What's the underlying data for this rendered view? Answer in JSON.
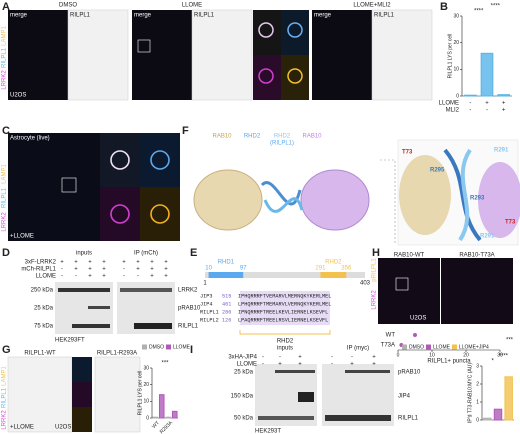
{
  "panel_letters": [
    "A",
    "B",
    "C",
    "D",
    "E",
    "F",
    "G",
    "H",
    "I"
  ],
  "a": {
    "conditions": [
      "DMSO",
      "LLOME",
      "LLOME+MLI2"
    ],
    "merge": "merge",
    "channel": "RILPL1",
    "cells": "U2OS",
    "stain": [
      "LRRK2",
      "RILPL1",
      "LAMP1"
    ]
  },
  "c": {
    "title": "Astrocyte (live)",
    "treatment": "+LLOME",
    "stain": [
      "LRRK2",
      "RILPL1",
      "LAMP1"
    ]
  },
  "d": {
    "groups": [
      "inputs",
      "IP (mCh)"
    ],
    "rows": [
      {
        "name": "3xF-LRRK2",
        "marks": [
          "+",
          "+",
          "+",
          "+",
          "+",
          "+",
          "+",
          "+"
        ]
      },
      {
        "name": "mCh-RILPL1",
        "marks": [
          "-",
          "+",
          "+",
          "+",
          "-",
          "+",
          "+",
          "+"
        ]
      },
      {
        "name": "LLOME",
        "marks": [
          "-",
          "-",
          "+",
          "+",
          "-",
          "-",
          "+",
          "+"
        ]
      }
    ],
    "bands": [
      {
        "size": "250 kDa",
        "name": "LRRK2"
      },
      {
        "size": "25 kDa",
        "name": "pRAB10"
      },
      {
        "size": "75 kDa",
        "name": "RILPL1"
      }
    ],
    "cells": "HEK293FT"
  },
  "e": {
    "domains": [
      {
        "name": "RHD1",
        "start": 10,
        "end": 97
      },
      {
        "name": "RHD2",
        "start": 291,
        "end": 356
      }
    ],
    "length_start": 1,
    "length_end": 403,
    "alignment": [
      {
        "protein": "JIP3",
        "start": 515,
        "sequence": "IPHQRRRFTVEMARVLMERNQKYKERLMEL"
      },
      {
        "protein": "JIP4",
        "start": 461,
        "sequence": "LPHQRRRFTMEMARVLVERNQKYKERLMEL"
      },
      {
        "protein": "RILPL1",
        "start": 286,
        "sequence": "IPNQRRRFTREELKEVLIERNELKSEVFL"
      },
      {
        "protein": "RILPL2",
        "start": 126,
        "sequence": "LPAQRRRFTREELRSVLIERNELKSEVFL"
      }
    ],
    "motif": "RHD2"
  },
  "f": {
    "labels": [
      "RAB10",
      "RHD2",
      "RHD2",
      "RAB10"
    ],
    "subtitle": "(RILPL1)",
    "residues": [
      "T73",
      "R291",
      "R295",
      "R293",
      "R291",
      "T73"
    ]
  },
  "g": {
    "conditions": [
      "RILPL1-WT",
      "RILPL1-R293A"
    ],
    "treatment": "+LLOME",
    "cells": "U2OS",
    "stain": [
      "LRRK2",
      "RILPL1",
      "LAMP1"
    ]
  },
  "h": {
    "conditions": [
      "RAB10-WT",
      "RAB10-T73A"
    ],
    "stain": [
      "LRRK2",
      "pRILPL1"
    ],
    "cells": "U2OS"
  },
  "i": {
    "groups": [
      "inputs",
      "IP (myc)"
    ],
    "rows": [
      {
        "name": "3xHA-JIP4",
        "marks": [
          "-",
          "-",
          "+",
          "-",
          "-",
          "+"
        ]
      },
      {
        "name": "LLOME",
        "marks": [
          "-",
          "+",
          "+",
          "-",
          "+",
          "+"
        ]
      }
    ],
    "bands": [
      {
        "size": "25 kDa",
        "name": "pRAB10"
      },
      {
        "size": "150 kDa",
        "name": "JIP4"
      },
      {
        "size": "50 kDa",
        "name": "RILPL1"
      }
    ],
    "cells": "HEK293T"
  },
  "chart_data": [
    {
      "type": "bar",
      "y_label": "RILPL1 LYS per cell",
      "categories": [
        null,
        null,
        null
      ],
      "values": [
        0.3,
        16,
        0.5
      ],
      "color": "#56b4e9",
      "ylim": [
        0,
        30
      ],
      "yticks": [
        0,
        10,
        20,
        30
      ],
      "significance": [
        "****",
        "****"
      ],
      "condition_rows": [
        {
          "name": "LLOME",
          "marks": [
            "-",
            "+",
            "+"
          ]
        },
        {
          "name": "MLI2",
          "marks": [
            "-",
            "-",
            "+"
          ]
        }
      ]
    },
    {
      "type": "bar",
      "y_label": "RILPL1 LYS per cell",
      "categories": [
        "WT",
        "R293A"
      ],
      "series": [
        {
          "name": "DMSO",
          "color": "#b0b0b0",
          "values": [
            0.5,
            0.5
          ]
        },
        {
          "name": "LLOME",
          "color": "#b05ab8",
          "values": [
            14,
            4
          ]
        }
      ],
      "ylim": [
        0,
        30
      ],
      "yticks": [
        0,
        10,
        20,
        30
      ],
      "significance": [
        "***"
      ]
    },
    {
      "type": "dot",
      "x_label": "RILPL1+ puncta",
      "categories": [
        "WT",
        "T73A"
      ],
      "values": [
        5,
        1
      ],
      "color": "#b05ab8",
      "xlim": [
        0,
        30
      ],
      "xticks": [
        0,
        10,
        20,
        30
      ],
      "significance": [
        "***"
      ]
    },
    {
      "type": "bar",
      "y_label": "IP'd T73-RAB10:MYC (AU)",
      "categories": [
        null
      ],
      "series": [
        {
          "name": "DMSO",
          "color": "#b0b0b0",
          "values": [
            0.1
          ]
        },
        {
          "name": "LLOME",
          "color": "#b05ab8",
          "values": [
            0.6
          ]
        },
        {
          "name": "LLOME+JIP4",
          "color": "#f2c14e",
          "values": [
            2.4
          ]
        }
      ],
      "ylim": [
        0,
        3
      ],
      "yticks": [
        0,
        1,
        2,
        3
      ],
      "significance": [
        "*",
        "****"
      ]
    }
  ]
}
